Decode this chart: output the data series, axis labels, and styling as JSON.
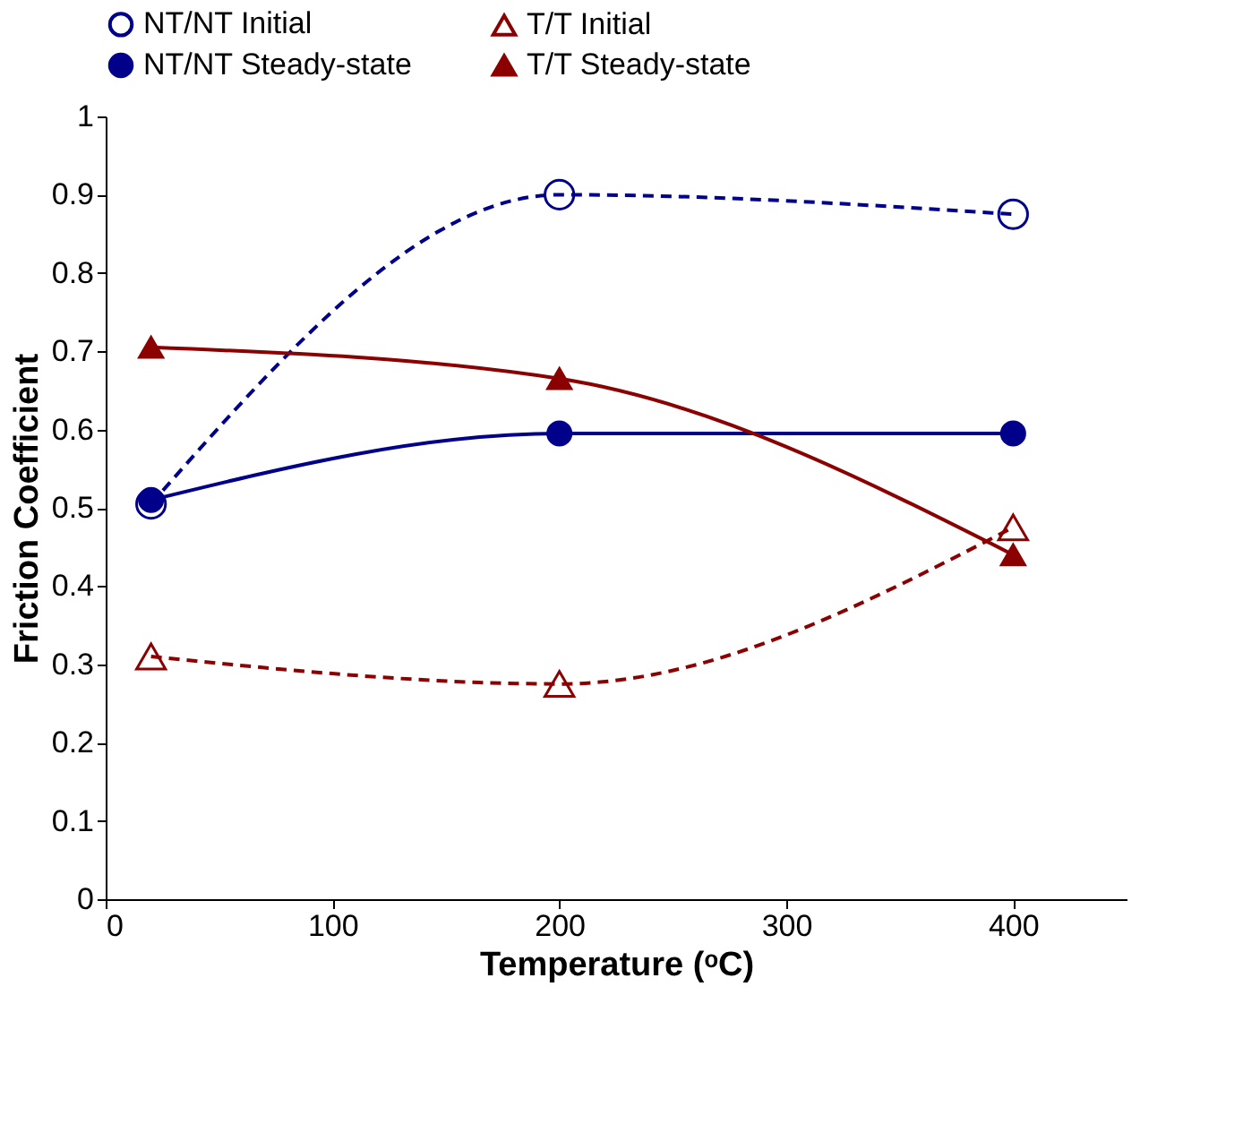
{
  "chart_data": {
    "type": "line",
    "xlabel": "Temperature (ᵒC)",
    "ylabel": "Friction Coefficient",
    "x": [
      20,
      200,
      400
    ],
    "series": [
      {
        "name": "NT/NT Initial",
        "color": "#00008b",
        "values": [
          0.505,
          0.9,
          0.875
        ],
        "line_style": "dashed",
        "marker": "circle"
      },
      {
        "name": "T/T Initial",
        "color": "#8b0000",
        "values": [
          0.31,
          0.275,
          0.475
        ],
        "line_style": "dashed",
        "marker": "triangle"
      },
      {
        "name": "NT/NT Steady-state",
        "color": "#00008b",
        "values": [
          0.51,
          0.595,
          0.595
        ],
        "line_style": "solid",
        "marker": "circle"
      },
      {
        "name": "T/T Steady-state",
        "color": "#8b0000",
        "values": [
          0.705,
          0.665,
          0.44
        ],
        "line_style": "solid",
        "marker": "triangle"
      }
    ],
    "xlim": [
      0,
      450
    ],
    "xticks": [
      0,
      100,
      200,
      300,
      400
    ],
    "ylim": [
      0,
      1
    ],
    "yticks": [
      0,
      0.1,
      0.2,
      0.3,
      0.4,
      0.5,
      0.6,
      0.7,
      0.8,
      0.9,
      1
    ],
    "grid": false,
    "legend": "top"
  }
}
